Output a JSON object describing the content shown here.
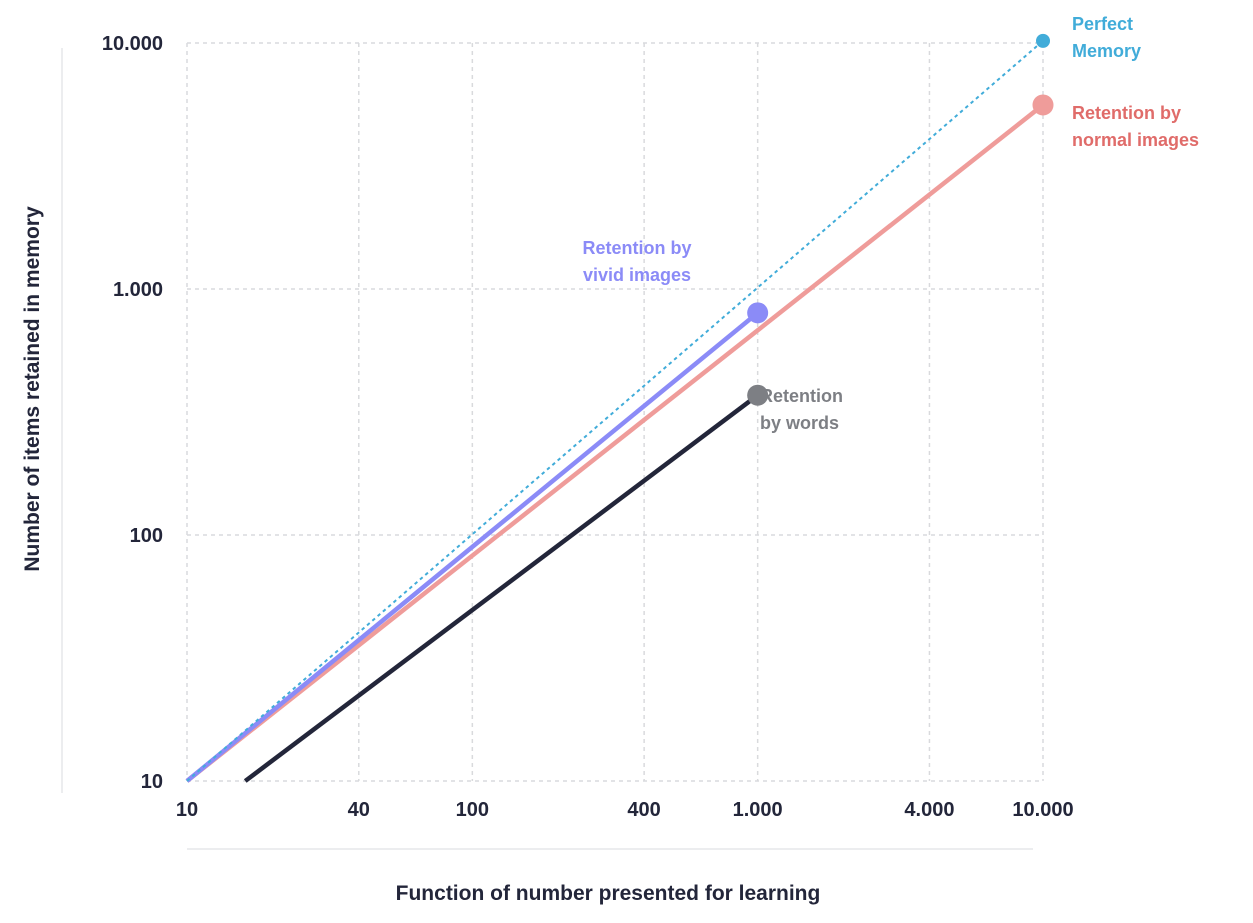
{
  "chart_data": {
    "type": "line",
    "xscale": "log",
    "yscale": "log",
    "xlabel": "Function of number presented for learning",
    "ylabel": "Number of items retained in memory",
    "xlim": [
      10,
      10000
    ],
    "ylim": [
      10,
      10000
    ],
    "x_ticks": [
      {
        "value": 10,
        "label": "10"
      },
      {
        "value": 40,
        "label": "40"
      },
      {
        "value": 100,
        "label": "100"
      },
      {
        "value": 400,
        "label": "400"
      },
      {
        "value": 1000,
        "label": "1.000"
      },
      {
        "value": 4000,
        "label": "4.000"
      },
      {
        "value": 10000,
        "label": "10.000"
      }
    ],
    "y_ticks": [
      {
        "value": 10,
        "label": "10"
      },
      {
        "value": 100,
        "label": "100"
      },
      {
        "value": 1000,
        "label": "1.000"
      },
      {
        "value": 10000,
        "label": "10.000"
      }
    ],
    "grid": true,
    "series": [
      {
        "key": "words",
        "lines": [
          "Retention",
          "by words"
        ],
        "color": "#23263a",
        "label_color": "#7d7f84",
        "marker_color": "#7d7f84",
        "style": "solid",
        "x": [
          16,
          1000
        ],
        "y": [
          10,
          370
        ]
      },
      {
        "key": "normal",
        "lines": [
          "Retention by",
          "normal images"
        ],
        "color": "#ef9c9a",
        "label_color": "#e06c6a",
        "marker_color": "#ef9c9a",
        "style": "solid",
        "x": [
          10,
          10000
        ],
        "y": [
          10,
          5600
        ]
      },
      {
        "key": "vivid",
        "lines": [
          "Retention by",
          "vivid images"
        ],
        "color": "#8b8bf7",
        "label_color": "#8b8bf7",
        "marker_color": "#8b8bf7",
        "style": "solid",
        "x": [
          10,
          1000
        ],
        "y": [
          10,
          800
        ]
      },
      {
        "key": "perfect",
        "lines": [
          "Perfect",
          "Memory"
        ],
        "color": "#41acd9",
        "label_color": "#41acd9",
        "marker_color": "#41acd9",
        "style": "dotted",
        "x": [
          10,
          10000
        ],
        "y": [
          10,
          10200
        ]
      }
    ]
  }
}
